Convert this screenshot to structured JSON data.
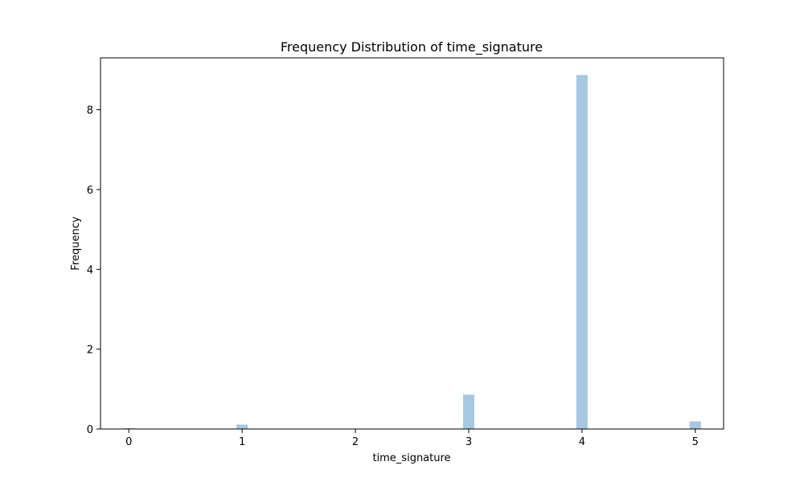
{
  "chart_data": {
    "type": "bar",
    "title": "Frequency Distribution of time_signature",
    "xlabel": "time_signature",
    "ylabel": "Frequency",
    "xlim": [
      -0.25,
      5.25
    ],
    "ylim": [
      0,
      9.3
    ],
    "x_ticks": [
      0,
      1,
      2,
      3,
      4,
      5
    ],
    "y_ticks": [
      0,
      2,
      4,
      6,
      8
    ],
    "bin_width": 0.1,
    "bins": [
      {
        "x": 0,
        "value": 0.02
      },
      {
        "x": 1,
        "value": 0.11
      },
      {
        "x": 3,
        "value": 0.86
      },
      {
        "x": 4,
        "value": 8.87
      },
      {
        "x": 5,
        "value": 0.19
      }
    ],
    "bar_color": "#a6c8e0",
    "grid": false
  }
}
